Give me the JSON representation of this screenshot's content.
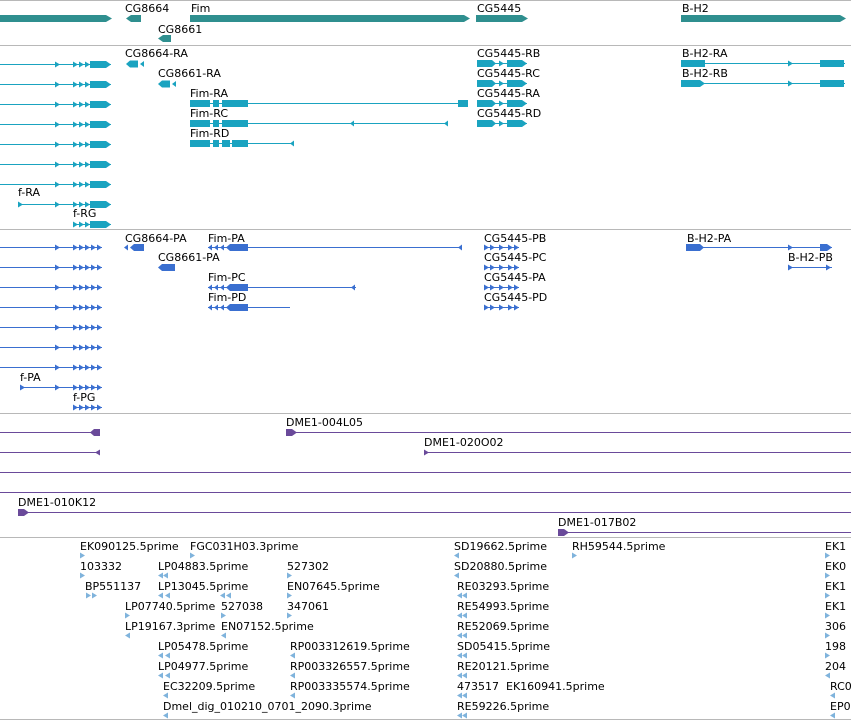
{
  "colors": {
    "gene": "#2f8f8f",
    "flybase": "#1aa3c0",
    "protein": "#3a6fd0",
    "clone": "#6a4a9a",
    "est": "#7fb3dc",
    "divider": "#b8b8b8"
  },
  "tracks": {
    "genes": [
      {
        "label": "CG8664"
      },
      {
        "label": "Fim"
      },
      {
        "label": "CG8661"
      },
      {
        "label": "CG5445"
      },
      {
        "label": "B-H2"
      }
    ],
    "transcripts": [
      {
        "label": "CG8664-RA"
      },
      {
        "label": "CG8661-RA"
      },
      {
        "label": "Fim-RA"
      },
      {
        "label": "Fim-RC"
      },
      {
        "label": "Fim-RD"
      },
      {
        "label": "f-RA"
      },
      {
        "label": "f-RG"
      },
      {
        "label": "CG5445-RB"
      },
      {
        "label": "CG5445-RC"
      },
      {
        "label": "CG5445-RA"
      },
      {
        "label": "CG5445-RD"
      },
      {
        "label": "B-H2-RA"
      },
      {
        "label": "B-H2-RB"
      }
    ],
    "proteins": [
      {
        "label": "CG8664-PA"
      },
      {
        "label": "CG8661-PA"
      },
      {
        "label": "Fim-PA"
      },
      {
        "label": "Fim-PC"
      },
      {
        "label": "Fim-PD"
      },
      {
        "label": "f-PA"
      },
      {
        "label": "f-PG"
      },
      {
        "label": "CG5445-PB"
      },
      {
        "label": "CG5445-PC"
      },
      {
        "label": "CG5445-PA"
      },
      {
        "label": "CG5445-PD"
      },
      {
        "label": "B-H2-PA"
      },
      {
        "label": "B-H2-PB"
      }
    ],
    "clones": [
      {
        "label": "DME1-004L05"
      },
      {
        "label": "DME1-020O02"
      },
      {
        "label": "DME1-010K12"
      },
      {
        "label": "DME1-017B02"
      }
    ],
    "ests": [
      {
        "label": "EK090125.5prime"
      },
      {
        "label": "FGC031H03.3prime"
      },
      {
        "label": "103332"
      },
      {
        "label": "LP04883.5prime"
      },
      {
        "label": "527302"
      },
      {
        "label": "BP551137"
      },
      {
        "label": "LP13045.5prime"
      },
      {
        "label": "EN07645.5prime"
      },
      {
        "label": "LP07740.5prime"
      },
      {
        "label": "527038"
      },
      {
        "label": "347061"
      },
      {
        "label": "LP19167.3prime"
      },
      {
        "label": "EN07152.5prime"
      },
      {
        "label": "LP05478.5prime"
      },
      {
        "label": "RP003312619.5prime"
      },
      {
        "label": "LP04977.5prime"
      },
      {
        "label": "RP003326557.5prime"
      },
      {
        "label": "EC32209.5prime"
      },
      {
        "label": "RP003335574.5prime"
      },
      {
        "label": "Dmel_dig_010210_0701_2090.3prime"
      },
      {
        "label": "SD19662.5prime"
      },
      {
        "label": "RH59544.5prime"
      },
      {
        "label": "SD20880.5prime"
      },
      {
        "label": "RE03293.5prime"
      },
      {
        "label": "RE54993.5prime"
      },
      {
        "label": "RE52069.5prime"
      },
      {
        "label": "SD05415.5prime"
      },
      {
        "label": "RE20121.5prime"
      },
      {
        "label": "473517"
      },
      {
        "label": "EK160941.5prime"
      },
      {
        "label": "RE59226.5prime"
      },
      {
        "label": "EK1"
      },
      {
        "label": "EK0"
      },
      {
        "label": "EK1"
      },
      {
        "label": "EK1"
      },
      {
        "label": "306"
      },
      {
        "label": "198"
      },
      {
        "label": "204"
      },
      {
        "label": "RC0"
      },
      {
        "label": "EP0"
      }
    ]
  }
}
